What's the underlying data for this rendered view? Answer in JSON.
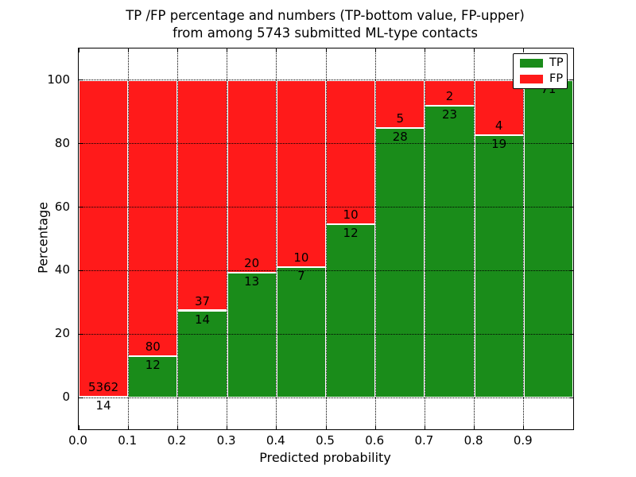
{
  "chart_data": {
    "type": "bar",
    "stacked": true,
    "title_line1": "TP /FP percentage and numbers (TP-bottom value, FP-upper)",
    "title_line2": "from among 5743 submitted ML-type contacts",
    "xlabel": "Predicted probability",
    "ylabel": "Percentage",
    "x_ticks": [
      "0.0",
      "0.1",
      "0.2",
      "0.3",
      "0.4",
      "0.5",
      "0.6",
      "0.7",
      "0.8",
      "0.9"
    ],
    "y_ticks": [
      "0",
      "20",
      "40",
      "60",
      "80",
      "100"
    ],
    "xlim": [
      0.0,
      1.0
    ],
    "ylim": [
      -10,
      110
    ],
    "bar_width": 0.1,
    "unit": "percent of each bin, bars normalized to 100%",
    "grid": "dotted black, horizontal and vertical",
    "categories": [
      "0.0-0.1",
      "0.1-0.2",
      "0.2-0.3",
      "0.3-0.4",
      "0.4-0.5",
      "0.5-0.6",
      "0.6-0.7",
      "0.7-0.8",
      "0.8-0.9",
      "0.9-1.0"
    ],
    "series": [
      {
        "name": "TP",
        "color": "#1a8c1a",
        "values": [
          14,
          12,
          14,
          13,
          7,
          12,
          28,
          23,
          19,
          71
        ]
      },
      {
        "name": "FP",
        "color": "#ff1a1a",
        "values": [
          5362,
          80,
          37,
          20,
          10,
          10,
          5,
          2,
          4,
          0
        ]
      }
    ],
    "legend": {
      "position": "upper right",
      "entries": [
        "TP",
        "FP"
      ]
    },
    "total_contacts": "5743"
  }
}
